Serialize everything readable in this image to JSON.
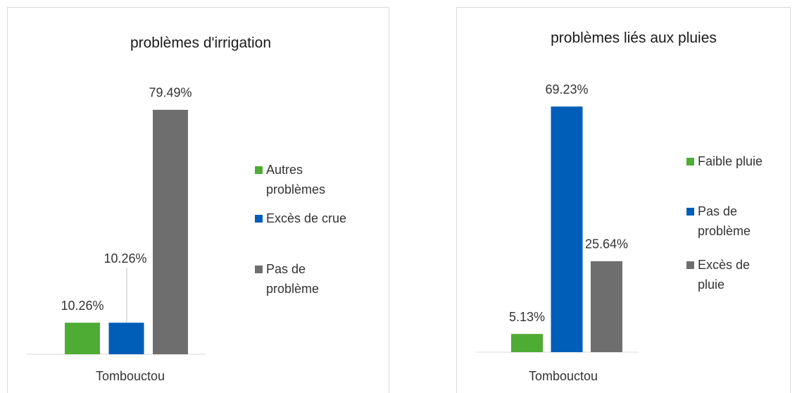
{
  "chart_data": [
    {
      "type": "bar",
      "title": "problèmes d'irrigation",
      "categories": [
        "Tombouctou"
      ],
      "series": [
        {
          "name": "Autres problèmes",
          "color": "#4eac34",
          "values": [
            10.26
          ],
          "value_labels": [
            "10.26%"
          ]
        },
        {
          "name": "Excès de crue",
          "color": "#005eb8",
          "values": [
            10.26
          ],
          "value_labels": [
            "10.26%"
          ]
        },
        {
          "name": "Pas de problème",
          "color": "#6e6e6e",
          "values": [
            79.49
          ],
          "value_labels": [
            "79.49%"
          ]
        }
      ],
      "ylim": [
        0,
        90
      ]
    },
    {
      "type": "bar",
      "title": "problèmes liés aux pluies",
      "categories": [
        "Tombouctou"
      ],
      "series": [
        {
          "name": "Faible pluie",
          "color": "#4eac34",
          "values": [
            5.13
          ],
          "value_labels": [
            "5.13%"
          ]
        },
        {
          "name": "Pas de problème",
          "color": "#005eb8",
          "values": [
            69.23
          ],
          "value_labels": [
            "69.23%"
          ]
        },
        {
          "name": "Excès de pluie",
          "color": "#6e6e6e",
          "values": [
            25.64
          ],
          "value_labels": [
            "25.64%"
          ]
        }
      ],
      "ylim": [
        0,
        80
      ]
    }
  ]
}
